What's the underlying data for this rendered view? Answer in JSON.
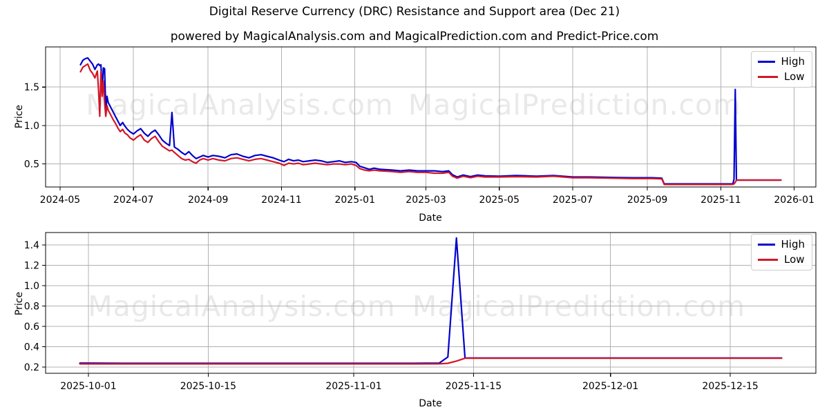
{
  "header": {
    "title": "Digital Reserve Currency (DRC) Resistance and Support area (Dec 21)",
    "subtitle": "powered by MagicalAnalysis.com and MagicalPrediction.com and Predict-Price.com"
  },
  "watermarks": {
    "left": "MagicalAnalysis.com",
    "right": "MagicalPrediction.com"
  },
  "legend": {
    "high": "High",
    "low": "Low"
  },
  "colors": {
    "high": "#0000cc",
    "low": "#d21626",
    "grid": "#b0b0b0",
    "spine": "#000000",
    "watermark": "#e9e9e9"
  },
  "chart_data": [
    {
      "type": "line",
      "title": "",
      "xlabel": "Date",
      "ylabel": "Price",
      "legend_position": "upper right",
      "grid": true,
      "xlim": [
        "2024-04-19",
        "2026-01-19"
      ],
      "ylim": [
        0.2,
        2.023
      ],
      "x_tick_dates": [
        "2024-05-01",
        "2024-07-01",
        "2024-09-01",
        "2024-11-01",
        "2025-01-01",
        "2025-03-01",
        "2025-05-01",
        "2025-07-01",
        "2025-09-01",
        "2025-11-01",
        "2026-01-01"
      ],
      "x_tick_labels": [
        "2024-05",
        "2024-07",
        "2024-09",
        "2024-11",
        "2025-01",
        "2025-03",
        "2025-05",
        "2025-07",
        "2025-09",
        "2025-11",
        "2026-01"
      ],
      "y_ticks": [
        0.5,
        1.0,
        1.5
      ],
      "y_tick_labels": [
        "0.5",
        "1.0",
        "1.5"
      ],
      "series_names": [
        "High",
        "Low"
      ],
      "points": [
        [
          "2024-05-18",
          1.79,
          1.7
        ],
        [
          "2024-05-20",
          1.85,
          1.76
        ],
        [
          "2024-05-22",
          1.87,
          1.78
        ],
        [
          "2024-05-24",
          1.88,
          1.8
        ],
        [
          "2024-05-26",
          1.84,
          1.72
        ],
        [
          "2024-05-28",
          1.8,
          1.68
        ],
        [
          "2024-05-30",
          1.73,
          1.62
        ],
        [
          "2024-06-01",
          1.79,
          1.71
        ],
        [
          "2024-06-02",
          1.8,
          1.45
        ],
        [
          "2024-06-03",
          1.78,
          1.12
        ],
        [
          "2024-06-04",
          1.79,
          1.7
        ],
        [
          "2024-06-05",
          1.46,
          1.38
        ],
        [
          "2024-06-06",
          1.75,
          1.58
        ],
        [
          "2024-06-07",
          1.74,
          1.3
        ],
        [
          "2024-06-08",
          1.2,
          1.12
        ],
        [
          "2024-06-09",
          1.38,
          1.26
        ],
        [
          "2024-06-10",
          1.3,
          1.2
        ],
        [
          "2024-06-12",
          1.24,
          1.14
        ],
        [
          "2024-06-14",
          1.18,
          1.08
        ],
        [
          "2024-06-16",
          1.12,
          1.03
        ],
        [
          "2024-06-18",
          1.06,
          0.97
        ],
        [
          "2024-06-20",
          1.0,
          0.92
        ],
        [
          "2024-06-22",
          1.04,
          0.95
        ],
        [
          "2024-06-24",
          0.99,
          0.9
        ],
        [
          "2024-06-26",
          0.95,
          0.88
        ],
        [
          "2024-06-28",
          0.92,
          0.84
        ],
        [
          "2024-07-01",
          0.89,
          0.81
        ],
        [
          "2024-07-04",
          0.93,
          0.85
        ],
        [
          "2024-07-07",
          0.96,
          0.88
        ],
        [
          "2024-07-10",
          0.9,
          0.81
        ],
        [
          "2024-07-13",
          0.86,
          0.78
        ],
        [
          "2024-07-16",
          0.91,
          0.83
        ],
        [
          "2024-07-19",
          0.94,
          0.86
        ],
        [
          "2024-07-22",
          0.88,
          0.79
        ],
        [
          "2024-07-25",
          0.81,
          0.73
        ],
        [
          "2024-07-28",
          0.77,
          0.7
        ],
        [
          "2024-07-31",
          0.74,
          0.67
        ],
        [
          "2024-08-02",
          1.17,
          0.68
        ],
        [
          "2024-08-04",
          0.72,
          0.65
        ],
        [
          "2024-08-07",
          0.69,
          0.61
        ],
        [
          "2024-08-10",
          0.65,
          0.57
        ],
        [
          "2024-08-13",
          0.62,
          0.55
        ],
        [
          "2024-08-16",
          0.66,
          0.56
        ],
        [
          "2024-08-19",
          0.61,
          0.53
        ],
        [
          "2024-08-22",
          0.57,
          0.51
        ],
        [
          "2024-08-25",
          0.59,
          0.55
        ],
        [
          "2024-08-28",
          0.61,
          0.57
        ],
        [
          "2024-09-01",
          0.59,
          0.55
        ],
        [
          "2024-09-05",
          0.61,
          0.57
        ],
        [
          "2024-09-10",
          0.6,
          0.55
        ],
        [
          "2024-09-15",
          0.58,
          0.54
        ],
        [
          "2024-09-20",
          0.62,
          0.57
        ],
        [
          "2024-09-25",
          0.63,
          0.58
        ],
        [
          "2024-09-30",
          0.6,
          0.56
        ],
        [
          "2024-10-05",
          0.58,
          0.54
        ],
        [
          "2024-10-10",
          0.61,
          0.56
        ],
        [
          "2024-10-15",
          0.62,
          0.57
        ],
        [
          "2024-10-20",
          0.6,
          0.55
        ],
        [
          "2024-10-25",
          0.58,
          0.53
        ],
        [
          "2024-10-30",
          0.55,
          0.51
        ],
        [
          "2024-11-03",
          0.53,
          0.48
        ],
        [
          "2024-11-07",
          0.56,
          0.51
        ],
        [
          "2024-11-11",
          0.54,
          0.5
        ],
        [
          "2024-11-15",
          0.55,
          0.51
        ],
        [
          "2024-11-19",
          0.53,
          0.49
        ],
        [
          "2024-11-24",
          0.54,
          0.5
        ],
        [
          "2024-11-29",
          0.55,
          0.51
        ],
        [
          "2024-12-04",
          0.54,
          0.5
        ],
        [
          "2024-12-09",
          0.52,
          0.49
        ],
        [
          "2024-12-14",
          0.53,
          0.5
        ],
        [
          "2024-12-19",
          0.54,
          0.5
        ],
        [
          "2024-12-24",
          0.52,
          0.49
        ],
        [
          "2024-12-29",
          0.53,
          0.5
        ],
        [
          "2025-01-02",
          0.52,
          0.48
        ],
        [
          "2025-01-05",
          0.47,
          0.44
        ],
        [
          "2025-01-09",
          0.45,
          0.42
        ],
        [
          "2025-01-13",
          0.43,
          0.41
        ],
        [
          "2025-01-17",
          0.445,
          0.42
        ],
        [
          "2025-01-22",
          0.43,
          0.41
        ],
        [
          "2025-02-01",
          0.42,
          0.4
        ],
        [
          "2025-02-08",
          0.41,
          0.39
        ],
        [
          "2025-02-15",
          0.42,
          0.4
        ],
        [
          "2025-02-22",
          0.41,
          0.39
        ],
        [
          "2025-03-01",
          0.41,
          0.39
        ],
        [
          "2025-03-08",
          0.41,
          0.38
        ],
        [
          "2025-03-15",
          0.4,
          0.38
        ],
        [
          "2025-03-20",
          0.41,
          0.39
        ],
        [
          "2025-03-23",
          0.36,
          0.34
        ],
        [
          "2025-03-27",
          0.33,
          0.315
        ],
        [
          "2025-04-01",
          0.355,
          0.34
        ],
        [
          "2025-04-07",
          0.335,
          0.32
        ],
        [
          "2025-04-13",
          0.355,
          0.34
        ],
        [
          "2025-04-19",
          0.345,
          0.33
        ],
        [
          "2025-05-01",
          0.34,
          0.33
        ],
        [
          "2025-05-15",
          0.35,
          0.335
        ],
        [
          "2025-06-01",
          0.34,
          0.33
        ],
        [
          "2025-06-15",
          0.35,
          0.34
        ],
        [
          "2025-07-01",
          0.33,
          0.32
        ],
        [
          "2025-07-15",
          0.33,
          0.32
        ],
        [
          "2025-08-01",
          0.325,
          0.315
        ],
        [
          "2025-08-20",
          0.32,
          0.31
        ],
        [
          "2025-09-05",
          0.32,
          0.31
        ],
        [
          "2025-09-13",
          0.315,
          0.305
        ],
        [
          "2025-09-15",
          0.24,
          0.232
        ],
        [
          "2025-10-01",
          0.24,
          0.232
        ],
        [
          "2025-10-20",
          0.24,
          0.232
        ],
        [
          "2025-11-05",
          0.24,
          0.232
        ],
        [
          "2025-11-11",
          0.24,
          0.233
        ],
        [
          "2025-11-12",
          0.3,
          0.24
        ],
        [
          "2025-11-13",
          1.47,
          0.26
        ],
        [
          "2025-11-14",
          0.29,
          0.29
        ],
        [
          "2025-11-25",
          0.29,
          0.29
        ],
        [
          "2025-12-05",
          0.29,
          0.29
        ],
        [
          "2025-12-15",
          0.29,
          0.29
        ],
        [
          "2025-12-21",
          0.29,
          0.29
        ]
      ]
    },
    {
      "type": "line",
      "title": "",
      "xlabel": "Date",
      "ylabel": "Price",
      "legend_position": "upper right",
      "grid": true,
      "xlim": [
        "2025-09-26",
        "2025-12-25"
      ],
      "ylim": [
        0.14,
        1.523
      ],
      "x_tick_dates": [
        "2025-10-01",
        "2025-10-15",
        "2025-11-01",
        "2025-11-15",
        "2025-12-01",
        "2025-12-15"
      ],
      "x_tick_labels": [
        "2025-10-01",
        "2025-10-15",
        "2025-11-01",
        "2025-11-15",
        "2025-12-01",
        "2025-12-15"
      ],
      "y_ticks": [
        0.2,
        0.4,
        0.6,
        0.8,
        1.0,
        1.2,
        1.4
      ],
      "y_tick_labels": [
        "0.2",
        "0.4",
        "0.6",
        "0.8",
        "1.0",
        "1.2",
        "1.4"
      ],
      "series_names": [
        "High",
        "Low"
      ],
      "points": [
        [
          "2025-09-30",
          0.24,
          0.232
        ],
        [
          "2025-10-05",
          0.238,
          0.232
        ],
        [
          "2025-10-15",
          0.238,
          0.232
        ],
        [
          "2025-11-01",
          0.238,
          0.232
        ],
        [
          "2025-11-08",
          0.238,
          0.232
        ],
        [
          "2025-11-11",
          0.24,
          0.233
        ],
        [
          "2025-11-12",
          0.3,
          0.238
        ],
        [
          "2025-11-13",
          1.47,
          0.26
        ],
        [
          "2025-11-14",
          0.29,
          0.288
        ],
        [
          "2025-11-20",
          0.29,
          0.288
        ],
        [
          "2025-12-01",
          0.29,
          0.288
        ],
        [
          "2025-12-10",
          0.29,
          0.288
        ],
        [
          "2025-12-21",
          0.29,
          0.288
        ]
      ]
    }
  ]
}
